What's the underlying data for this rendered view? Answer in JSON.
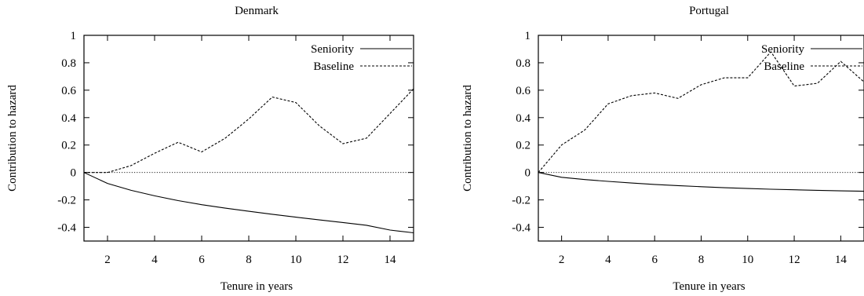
{
  "chart_data": [
    {
      "type": "line",
      "title": "Denmark",
      "xlabel": "Tenure in years",
      "ylabel": "Contribution to hazard",
      "xlim": [
        1,
        15
      ],
      "ylim": [
        -0.5,
        1
      ],
      "xticks": [
        2,
        4,
        6,
        8,
        10,
        12,
        14
      ],
      "xtick_labels": [
        "2",
        "4",
        "6",
        "8",
        "10",
        "12",
        "14"
      ],
      "yticks": [
        -0.4,
        -0.2,
        0,
        0.2,
        0.4,
        0.6,
        0.8,
        1
      ],
      "ytick_labels": [
        "-0.4",
        "-0.2",
        "0",
        "0.2",
        "0.4",
        "0.6",
        "0.8",
        "1"
      ],
      "grid": false,
      "legend_position": "top-right",
      "zero_line": true,
      "series": [
        {
          "name": "Seniority",
          "style": "solid",
          "x": [
            1,
            2,
            3,
            4,
            5,
            6,
            7,
            8,
            9,
            10,
            11,
            12,
            13,
            14,
            15
          ],
          "y": [
            0,
            -0.08,
            -0.13,
            -0.17,
            -0.205,
            -0.235,
            -0.26,
            -0.283,
            -0.305,
            -0.326,
            -0.346,
            -0.365,
            -0.385,
            -0.42,
            -0.44
          ]
        },
        {
          "name": "Baseline",
          "style": "dashed",
          "x": [
            1,
            2,
            3,
            4,
            5,
            6,
            7,
            8,
            9,
            10,
            11,
            12,
            13,
            14,
            15
          ],
          "y": [
            0,
            0,
            0.05,
            0.14,
            0.22,
            0.15,
            0.25,
            0.39,
            0.55,
            0.51,
            0.34,
            0.21,
            0.25,
            0.43,
            0.61
          ]
        }
      ]
    },
    {
      "type": "line",
      "title": "Portugal",
      "xlabel": "Tenure in years",
      "ylabel": "Contribution to hazard",
      "xlim": [
        1,
        15
      ],
      "ylim": [
        -0.5,
        1
      ],
      "xticks": [
        2,
        4,
        6,
        8,
        10,
        12,
        14
      ],
      "xtick_labels": [
        "2",
        "4",
        "6",
        "8",
        "10",
        "12",
        "14"
      ],
      "yticks": [
        -0.4,
        -0.2,
        0,
        0.2,
        0.4,
        0.6,
        0.8,
        1
      ],
      "ytick_labels": [
        "-0.4",
        "-0.2",
        "0",
        "0.2",
        "0.4",
        "0.6",
        "0.8",
        "1"
      ],
      "grid": false,
      "legend_position": "top-right",
      "zero_line": true,
      "series": [
        {
          "name": "Seniority",
          "style": "solid",
          "x": [
            1,
            2,
            3,
            4,
            5,
            6,
            7,
            8,
            9,
            10,
            11,
            12,
            13,
            14,
            15
          ],
          "y": [
            0,
            -0.035,
            -0.052,
            -0.065,
            -0.077,
            -0.087,
            -0.096,
            -0.104,
            -0.111,
            -0.117,
            -0.122,
            -0.126,
            -0.13,
            -0.134,
            -0.137
          ]
        },
        {
          "name": "Baseline",
          "style": "dashed",
          "x": [
            1,
            2,
            3,
            4,
            5,
            6,
            7,
            8,
            9,
            10,
            11,
            12,
            13,
            14,
            15
          ],
          "y": [
            0,
            0.2,
            0.31,
            0.5,
            0.56,
            0.58,
            0.54,
            0.64,
            0.69,
            0.69,
            0.88,
            0.63,
            0.65,
            0.81,
            0.66
          ]
        }
      ]
    }
  ]
}
